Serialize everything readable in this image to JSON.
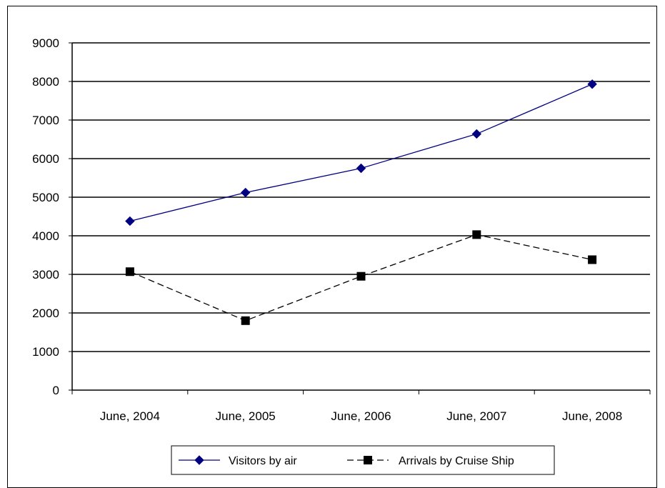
{
  "chart_data": {
    "type": "line",
    "categories": [
      "June, 2004",
      "June, 2005",
      "June, 2006",
      "June, 2007",
      "June, 2008"
    ],
    "series": [
      {
        "name": "Visitors by air",
        "values": [
          4380,
          5120,
          5750,
          6640,
          7930
        ],
        "color": "#000080",
        "marker": "diamond",
        "line_style": "solid"
      },
      {
        "name": "Arrivals by Cruise Ship",
        "values": [
          3070,
          1800,
          2950,
          4030,
          3380
        ],
        "color": "#000000",
        "marker": "square",
        "line_style": "dashed"
      }
    ],
    "ylim": [
      0,
      9000
    ],
    "yticks": [
      "0",
      "1000",
      "2000",
      "3000",
      "4000",
      "5000",
      "6000",
      "7000",
      "8000",
      "9000"
    ],
    "grid": "horizontal",
    "legend_position": "bottom",
    "title": "",
    "xlabel": "",
    "ylabel": ""
  }
}
